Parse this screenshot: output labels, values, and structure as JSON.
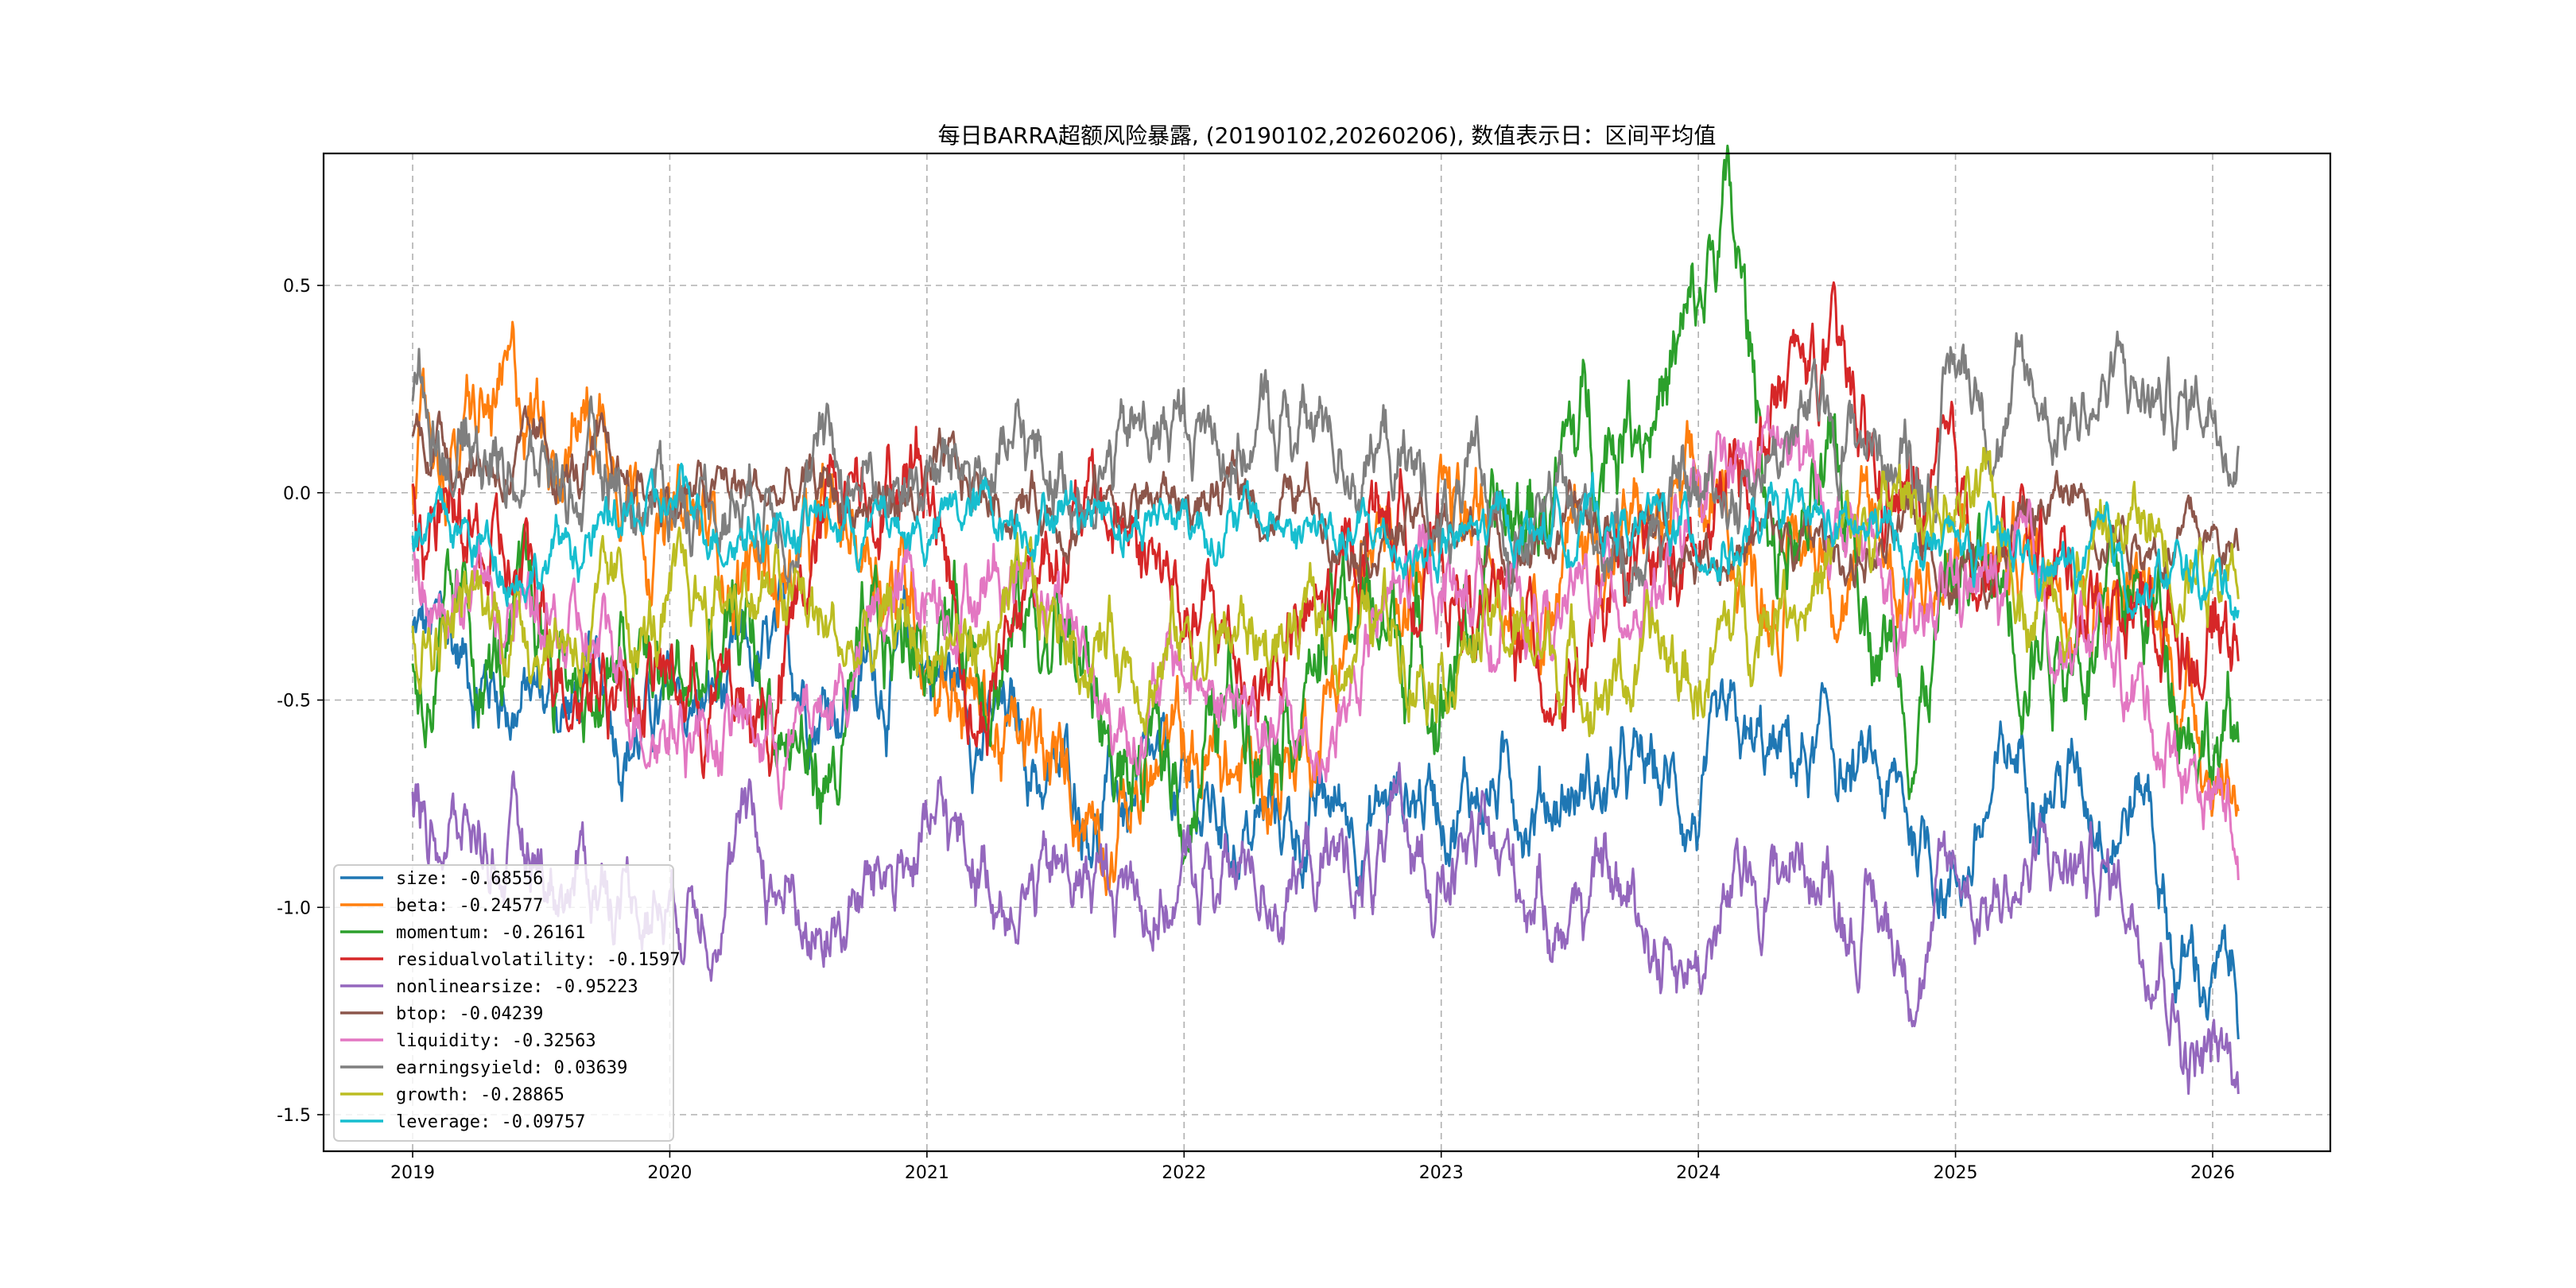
{
  "chart_data": {
    "type": "line",
    "title": "每日BARRA超额风险暴露, (20190102,20260206), 数值表示日：区间平均值",
    "xlabel": "",
    "ylabel": "",
    "xlim": [
      2018.72,
      2026.5
    ],
    "ylim": [
      -1.59,
      0.82
    ],
    "xticks": [
      2019,
      2020,
      2021,
      2022,
      2023,
      2024,
      2025,
      2026
    ],
    "xtick_labels": [
      "2019",
      "2020",
      "2021",
      "2022",
      "2023",
      "2024",
      "2025",
      "2026"
    ],
    "yticks": [
      0.5,
      0.0,
      -0.5,
      -1.0,
      -1.5
    ],
    "ytick_labels": [
      "0.5",
      "0.0",
      "-0.5",
      "-1.0",
      "-1.5"
    ],
    "grid": true,
    "legend_position": "lower-left",
    "series": [
      {
        "name": "size",
        "legend": "size: -0.68556",
        "color": "#1f77b4",
        "noise": 0.06,
        "anchors": [
          [
            2019,
            -0.35
          ],
          [
            2019.5,
            -0.5
          ],
          [
            2020,
            -0.55
          ],
          [
            2020.5,
            -0.45
          ],
          [
            2021,
            -0.4
          ],
          [
            2021.5,
            -0.7
          ],
          [
            2022,
            -0.8
          ],
          [
            2022.5,
            -0.8
          ],
          [
            2023,
            -0.7
          ],
          [
            2023.5,
            -0.7
          ],
          [
            2024,
            -0.75
          ],
          [
            2024.5,
            -0.65
          ],
          [
            2025,
            -0.9
          ],
          [
            2025.3,
            -0.6
          ],
          [
            2025.5,
            -0.7
          ],
          [
            2025.75,
            -0.7
          ],
          [
            2025.85,
            -1.1
          ],
          [
            2026.1,
            -1.23
          ]
        ]
      },
      {
        "name": "beta",
        "legend": "beta: -0.24577",
        "color": "#ff7f0e",
        "noise": 0.07,
        "anchors": [
          [
            2019,
            0.05
          ],
          [
            2019.5,
            0.2
          ],
          [
            2019.8,
            0.2
          ],
          [
            2020,
            -0.1
          ],
          [
            2020.5,
            -0.2
          ],
          [
            2020.8,
            -0.1
          ],
          [
            2021,
            -0.3
          ],
          [
            2021.3,
            -0.6
          ],
          [
            2021.5,
            -0.75
          ],
          [
            2021.8,
            -0.7
          ],
          [
            2022,
            -0.65
          ],
          [
            2022.3,
            -0.7
          ],
          [
            2022.5,
            -0.55
          ],
          [
            2022.7,
            -0.2
          ],
          [
            2023,
            -0.15
          ],
          [
            2023.5,
            -0.1
          ],
          [
            2024,
            -0.1
          ],
          [
            2024.3,
            -0.2
          ],
          [
            2024.5,
            -0.1
          ],
          [
            2025,
            -0.2
          ],
          [
            2025.5,
            -0.1
          ],
          [
            2025.8,
            -0.35
          ],
          [
            2026.1,
            -0.7
          ]
        ]
      },
      {
        "name": "momentum",
        "legend": "momentum: -0.26161",
        "color": "#2ca02c",
        "noise": 0.08,
        "anchors": [
          [
            2019,
            -0.45
          ],
          [
            2019.5,
            -0.4
          ],
          [
            2020,
            -0.5
          ],
          [
            2020.3,
            -0.4
          ],
          [
            2020.6,
            -0.7
          ],
          [
            2021,
            -0.3
          ],
          [
            2021.5,
            -0.3
          ],
          [
            2021.8,
            -0.7
          ],
          [
            2022,
            -0.7
          ],
          [
            2022.3,
            -0.4
          ],
          [
            2022.7,
            -0.3
          ],
          [
            2023,
            -0.4
          ],
          [
            2023.4,
            0.0
          ],
          [
            2023.7,
            0.25
          ],
          [
            2024,
            0.35
          ],
          [
            2024.1,
            0.7
          ],
          [
            2024.3,
            -0.1
          ],
          [
            2024.6,
            -0.1
          ],
          [
            2024.85,
            -0.45
          ],
          [
            2025,
            -0.2
          ],
          [
            2025.5,
            -0.3
          ],
          [
            2025.8,
            -0.3
          ],
          [
            2026.1,
            -0.65
          ]
        ]
      },
      {
        "name": "residualvolatility",
        "legend": "residualvolatility: -0.1597",
        "color": "#d62728",
        "noise": 0.07,
        "anchors": [
          [
            2019,
            0.0
          ],
          [
            2019.3,
            -0.2
          ],
          [
            2019.6,
            -0.35
          ],
          [
            2020,
            -0.45
          ],
          [
            2020.4,
            -0.55
          ],
          [
            2020.7,
            0.1
          ],
          [
            2021,
            0.1
          ],
          [
            2021.2,
            -0.5
          ],
          [
            2021.5,
            -0.05
          ],
          [
            2021.8,
            -0.1
          ],
          [
            2022,
            -0.3
          ],
          [
            2022.3,
            -0.45
          ],
          [
            2022.6,
            -0.3
          ],
          [
            2022.75,
            0.0
          ],
          [
            2023,
            -0.2
          ],
          [
            2023.4,
            -0.4
          ],
          [
            2023.7,
            -0.3
          ],
          [
            2024,
            -0.2
          ],
          [
            2024.3,
            0.2
          ],
          [
            2024.5,
            0.3
          ],
          [
            2024.7,
            0.0
          ],
          [
            2025,
            -0.1
          ],
          [
            2025.5,
            -0.2
          ],
          [
            2025.8,
            -0.3
          ],
          [
            2026.1,
            -0.3
          ]
        ]
      },
      {
        "name": "nonlinearsize",
        "legend": "nonlinearsize: -0.95223",
        "color": "#9467bd",
        "noise": 0.06,
        "anchors": [
          [
            2019,
            -0.78
          ],
          [
            2019.5,
            -0.9
          ],
          [
            2020,
            -0.95
          ],
          [
            2020.3,
            -0.85
          ],
          [
            2020.6,
            -1.05
          ],
          [
            2021,
            -0.85
          ],
          [
            2021.5,
            -0.95
          ],
          [
            2022,
            -0.95
          ],
          [
            2022.5,
            -0.9
          ],
          [
            2023,
            -0.9
          ],
          [
            2023.5,
            -0.95
          ],
          [
            2024,
            -1.1
          ],
          [
            2024.4,
            -0.85
          ],
          [
            2024.8,
            -1.1
          ],
          [
            2025,
            -0.95
          ],
          [
            2025.5,
            -0.9
          ],
          [
            2025.8,
            -1.0
          ],
          [
            2025.9,
            -1.3
          ],
          [
            2026.1,
            -1.45
          ]
        ]
      },
      {
        "name": "btop",
        "legend": "btop: -0.04239",
        "color": "#8c564b",
        "noise": 0.04,
        "anchors": [
          [
            2019,
            0.15
          ],
          [
            2019.5,
            0.05
          ],
          [
            2020,
            0.0
          ],
          [
            2020.1,
            -0.01
          ],
          [
            2022.5,
            -0.02
          ],
          [
            2022.7,
            -0.05
          ],
          [
            2023,
            -0.1
          ],
          [
            2023.5,
            -0.1
          ],
          [
            2024,
            -0.1
          ],
          [
            2024.5,
            -0.15
          ],
          [
            2025,
            -0.15
          ],
          [
            2025.5,
            0.0
          ],
          [
            2025.8,
            -0.1
          ],
          [
            2026.1,
            -0.15
          ]
        ]
      },
      {
        "name": "liquidity",
        "legend": "liquidity: -0.32563",
        "color": "#e377c2",
        "noise": 0.06,
        "anchors": [
          [
            2019,
            -0.1
          ],
          [
            2019.5,
            -0.35
          ],
          [
            2020,
            -0.5
          ],
          [
            2020.5,
            -0.6
          ],
          [
            2021,
            -0.2
          ],
          [
            2021.5,
            -0.15
          ],
          [
            2021.7,
            -0.55
          ],
          [
            2022,
            -0.45
          ],
          [
            2022.5,
            -0.65
          ],
          [
            2022.8,
            -0.3
          ],
          [
            2023,
            -0.2
          ],
          [
            2023.5,
            -0.3
          ],
          [
            2024,
            -0.1
          ],
          [
            2024.3,
            0.1
          ],
          [
            2024.6,
            -0.1
          ],
          [
            2024.85,
            -0.45
          ],
          [
            2025,
            -0.2
          ],
          [
            2025.5,
            -0.35
          ],
          [
            2025.8,
            -0.55
          ],
          [
            2026.1,
            -0.8
          ]
        ]
      },
      {
        "name": "earningsyield",
        "legend": "earningsyield: 0.03639",
        "color": "#7f7f7f",
        "noise": 0.06,
        "anchors": [
          [
            2019,
            0.2
          ],
          [
            2019.5,
            0.05
          ],
          [
            2020,
            0.0
          ],
          [
            2020.5,
            0.05
          ],
          [
            2021,
            0.05
          ],
          [
            2021.5,
            0.05
          ],
          [
            2022,
            0.15
          ],
          [
            2022.5,
            0.15
          ],
          [
            2022.8,
            0.1
          ],
          [
            2023,
            -0.05
          ],
          [
            2023.5,
            -0.1
          ],
          [
            2024,
            -0.05
          ],
          [
            2024.3,
            0.15
          ],
          [
            2024.6,
            0.15
          ],
          [
            2024.9,
            0.1
          ],
          [
            2025,
            0.3
          ],
          [
            2025.3,
            0.2
          ],
          [
            2025.6,
            0.25
          ],
          [
            2025.9,
            0.2
          ],
          [
            2026.05,
            0.3
          ],
          [
            2026.1,
            0.2
          ]
        ]
      },
      {
        "name": "growth",
        "legend": "growth: -0.28865",
        "color": "#bcbd22",
        "noise": 0.06,
        "anchors": [
          [
            2019,
            -0.3
          ],
          [
            2019.5,
            -0.3
          ],
          [
            2020,
            -0.35
          ],
          [
            2020.3,
            -0.2
          ],
          [
            2020.7,
            -0.4
          ],
          [
            2021,
            -0.35
          ],
          [
            2021.5,
            -0.35
          ],
          [
            2022,
            -0.35
          ],
          [
            2022.5,
            -0.35
          ],
          [
            2023,
            -0.3
          ],
          [
            2023.5,
            -0.4
          ],
          [
            2024,
            -0.45
          ],
          [
            2024.3,
            -0.2
          ],
          [
            2024.6,
            -0.15
          ],
          [
            2024.9,
            0.0
          ],
          [
            2025.3,
            -0.2
          ],
          [
            2025.6,
            -0.1
          ],
          [
            2026.1,
            -0.1
          ]
        ]
      },
      {
        "name": "leverage",
        "legend": "leverage: -0.09757",
        "color": "#17becf",
        "noise": 0.04,
        "anchors": [
          [
            2019,
            -0.1
          ],
          [
            2019.5,
            -0.15
          ],
          [
            2020,
            -0.05
          ],
          [
            2020.5,
            -0.05
          ],
          [
            2021,
            -0.1
          ],
          [
            2021.5,
            0.0
          ],
          [
            2022,
            -0.05
          ],
          [
            2022.5,
            -0.1
          ],
          [
            2023,
            -0.15
          ],
          [
            2023.5,
            -0.05
          ],
          [
            2024,
            -0.1
          ],
          [
            2024.5,
            -0.1
          ],
          [
            2025,
            -0.15
          ],
          [
            2025.5,
            -0.2
          ],
          [
            2026.1,
            -0.22
          ]
        ]
      }
    ]
  }
}
